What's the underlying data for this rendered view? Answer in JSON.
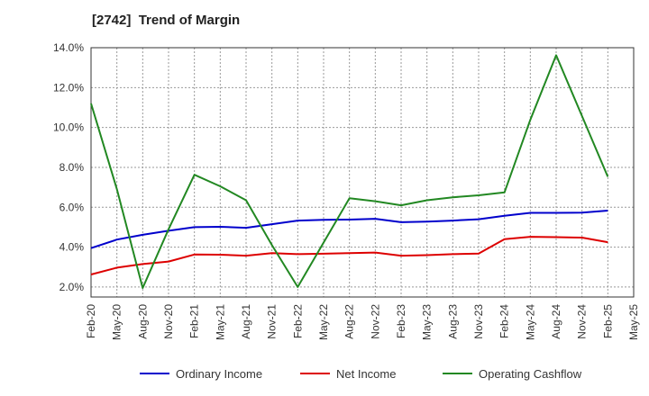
{
  "chart_data": {
    "type": "line",
    "title": "[2742]  Trend of Margin",
    "xlabel": "",
    "ylabel": "",
    "categories": [
      "Feb-20",
      "May-20",
      "Aug-20",
      "Nov-20",
      "Feb-21",
      "May-21",
      "Aug-21",
      "Nov-21",
      "Feb-22",
      "May-22",
      "Aug-22",
      "Nov-22",
      "Feb-23",
      "May-23",
      "Aug-23",
      "Nov-23",
      "Feb-24",
      "May-24",
      "Aug-24",
      "Nov-24",
      "Feb-25",
      "May-25"
    ],
    "ylim": [
      1.5,
      14.0
    ],
    "yticks": [
      2.0,
      4.0,
      6.0,
      8.0,
      10.0,
      12.0,
      14.0
    ],
    "ytick_labels": [
      "2.0%",
      "4.0%",
      "6.0%",
      "8.0%",
      "10.0%",
      "12.0%",
      "14.0%"
    ],
    "grid": true,
    "legend_position": "bottom",
    "series": [
      {
        "name": "Ordinary Income",
        "color": "#0000cc",
        "values": [
          3.95,
          4.38,
          4.62,
          4.82,
          5.0,
          5.02,
          4.97,
          5.15,
          5.33,
          5.37,
          5.38,
          5.42,
          5.25,
          5.28,
          5.33,
          5.4,
          5.57,
          5.72,
          5.72,
          5.73,
          5.83,
          null
        ]
      },
      {
        "name": "Net Income",
        "color": "#dd0000",
        "values": [
          2.63,
          2.97,
          3.15,
          3.28,
          3.63,
          3.62,
          3.57,
          3.7,
          3.65,
          3.67,
          3.7,
          3.73,
          3.57,
          3.6,
          3.65,
          3.68,
          4.4,
          4.52,
          4.5,
          4.48,
          4.25,
          null
        ]
      },
      {
        "name": "Operating Cashflow",
        "color": "#228822",
        "values": [
          11.2,
          6.9,
          1.95,
          4.9,
          7.63,
          7.05,
          6.35,
          4.1,
          2.0,
          4.23,
          6.45,
          6.3,
          6.1,
          6.35,
          6.5,
          6.6,
          6.75,
          10.38,
          13.62,
          10.57,
          7.53,
          null
        ]
      }
    ]
  }
}
